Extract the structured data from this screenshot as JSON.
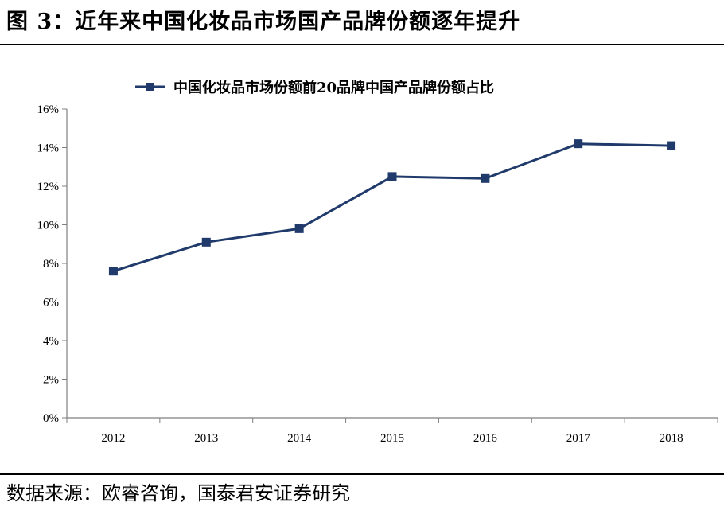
{
  "title": "图 3：近年来中国化妆品市场国产品牌份额逐年提升",
  "source": "数据来源：欧睿咨询，国泰君安证券研究",
  "colors": {
    "series": "#1f3a6b",
    "axis": "#7f7f7f"
  },
  "chart_data": {
    "type": "line",
    "categories": [
      "2012",
      "2013",
      "2014",
      "2015",
      "2016",
      "2017",
      "2018"
    ],
    "series": [
      {
        "name": "中国化妆品市场份额前20品牌中国产品牌份额占比",
        "values": [
          7.6,
          9.1,
          9.8,
          12.5,
          12.4,
          14.2,
          14.1
        ]
      }
    ],
    "ylim": [
      0,
      16
    ],
    "yticks": [
      "0%",
      "2%",
      "4%",
      "6%",
      "8%",
      "10%",
      "12%",
      "14%",
      "16%"
    ],
    "ytick_values": [
      0,
      2,
      4,
      6,
      8,
      10,
      12,
      14,
      16
    ],
    "legend_position": "top-center",
    "grid": false,
    "marker": "square"
  }
}
